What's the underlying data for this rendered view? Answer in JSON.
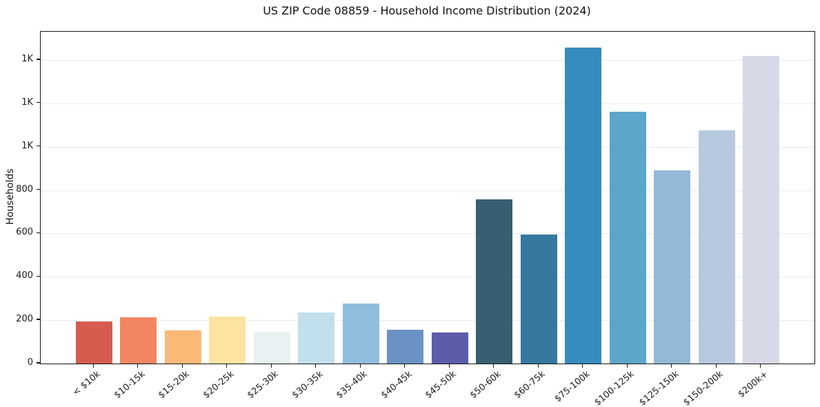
{
  "chart_data": {
    "type": "bar",
    "title": "US ZIP Code 08859 - Household Income Distribution (2024)",
    "xlabel": "",
    "ylabel": "Households",
    "categories": [
      "< $10k",
      "$10-15k",
      "$15-20k",
      "$20-25k",
      "$25-30k",
      "$30-35k",
      "$35-40k",
      "$40-45k",
      "$45-50k",
      "$50-60k",
      "$60-75k",
      "$75-100k",
      "$100-125k",
      "$125-150k",
      "$150-200k",
      "$200k+"
    ],
    "values": [
      194,
      213,
      154,
      215,
      146,
      235,
      277,
      156,
      143,
      757,
      595,
      1456,
      1161,
      890,
      1075,
      1418
    ],
    "bar_colors": [
      "#d65c4f",
      "#f28663",
      "#fbb877",
      "#fde3a0",
      "#e8f2f3",
      "#c1dfec",
      "#90bddb",
      "#6c92c5",
      "#5b5caa",
      "#365f72",
      "#36799f",
      "#368cbf",
      "#5ba6c9",
      "#94b9d7",
      "#b7c9de",
      "#d8d9e6"
    ],
    "yticks": [
      {
        "value": 0,
        "label": "0"
      },
      {
        "value": 200,
        "label": "200"
      },
      {
        "value": 400,
        "label": "400"
      },
      {
        "value": 600,
        "label": "600"
      },
      {
        "value": 800,
        "label": "800"
      },
      {
        "value": 1000,
        "label": "1K"
      },
      {
        "value": 1200,
        "label": "1K"
      },
      {
        "value": 1400,
        "label": "1K"
      }
    ],
    "ylim": [
      0,
      1530
    ],
    "grid": "horizontal-only",
    "legend": "none",
    "x_tick_rotation_deg": 40
  }
}
